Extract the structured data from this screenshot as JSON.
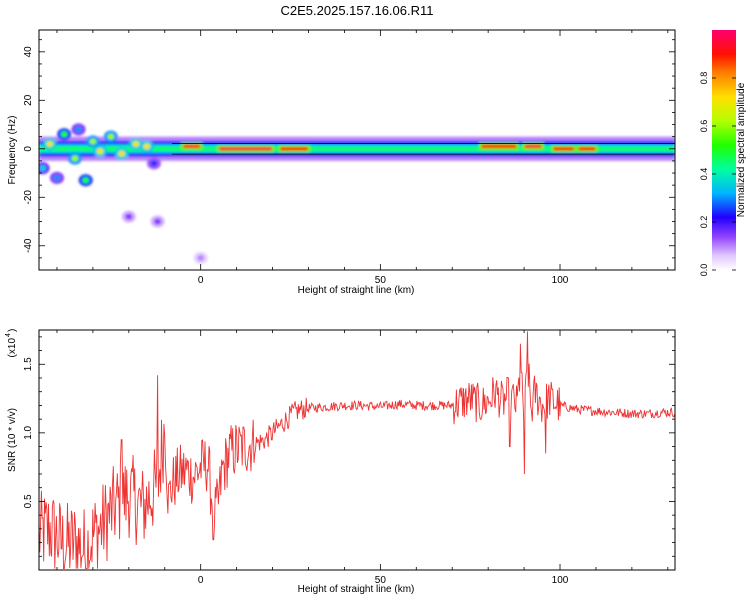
{
  "title": "C2E5.2025.157.16.06.R11",
  "chart_data": [
    {
      "type": "heatmap",
      "xlabel": "Height of straight line (km)",
      "ylabel": "Frequency (Hz)",
      "xlim": [
        -45,
        132
      ],
      "ylim": [
        -50,
        49
      ],
      "xticks": [
        0,
        50,
        100
      ],
      "yticks": [
        -40,
        -20,
        0,
        20,
        40
      ],
      "grid": false,
      "colorbar": {
        "label": "Normalized spectral amplitude",
        "range": [
          0,
          1
        ],
        "ticks": [
          "0.0",
          "0.2",
          "0.4",
          "0.6",
          "0.8"
        ],
        "tick_values": [
          0,
          0.2,
          0.4,
          0.6,
          0.8
        ],
        "colors": [
          "#ffffff",
          "#c8a0ff",
          "#8000ff",
          "#0000ff",
          "#00c8ff",
          "#00ff80",
          "#40ff00",
          "#c8ff00",
          "#ffff00",
          "#ff8000",
          "#ff0000",
          "#ff0060"
        ]
      },
      "features": [
        {
          "x": [
            -45,
            132
          ],
          "y": 0,
          "half_width_hz": 2,
          "amplitude": 0.45
        },
        {
          "x": [
            -5,
            0
          ],
          "y": 1,
          "amplitude": 0.95
        },
        {
          "x": [
            5,
            20
          ],
          "y": 0,
          "amplitude": 0.95
        },
        {
          "x": [
            22,
            30
          ],
          "y": 0,
          "amplitude": 0.9
        },
        {
          "x": [
            78,
            88
          ],
          "y": 1,
          "amplitude": 0.9
        },
        {
          "x": [
            90,
            95
          ],
          "y": 1,
          "amplitude": 0.95
        },
        {
          "x": [
            98,
            104
          ],
          "y": 0,
          "amplitude": 0.9
        },
        {
          "x": [
            105,
            110
          ],
          "y": 0,
          "amplitude": 0.9
        }
      ],
      "scatter_blobs": [
        {
          "x": -42,
          "y": 2,
          "amplitude": 0.7
        },
        {
          "x": -38,
          "y": 6,
          "amplitude": 0.5
        },
        {
          "x": -35,
          "y": -4,
          "amplitude": 0.6
        },
        {
          "x": -32,
          "y": -13,
          "amplitude": 0.5
        },
        {
          "x": -30,
          "y": 3,
          "amplitude": 0.6
        },
        {
          "x": -28,
          "y": -1,
          "amplitude": 0.7
        },
        {
          "x": -25,
          "y": 5,
          "amplitude": 0.6
        },
        {
          "x": -22,
          "y": -2,
          "amplitude": 0.7
        },
        {
          "x": -20,
          "y": -28,
          "amplitude": 0.15
        },
        {
          "x": -18,
          "y": 2,
          "amplitude": 0.7
        },
        {
          "x": -15,
          "y": 1,
          "amplitude": 0.7
        },
        {
          "x": -13,
          "y": -6,
          "amplitude": 0.25
        },
        {
          "x": -12,
          "y": -30,
          "amplitude": 0.15
        },
        {
          "x": -44,
          "y": -8,
          "amplitude": 0.35
        },
        {
          "x": -40,
          "y": -12,
          "amplitude": 0.3
        },
        {
          "x": -34,
          "y": 8,
          "amplitude": 0.3
        },
        {
          "x": 0,
          "y": -45,
          "amplitude": 0.1
        }
      ]
    },
    {
      "type": "line",
      "xlabel": "Height of straight line (km)",
      "ylabel": "SNR (10 * v/v)",
      "y_multiplier": "(x10",
      "y_multiplier_exp": "4",
      "xlim": [
        -45,
        132
      ],
      "ylim": [
        0,
        1.75
      ],
      "xticks": [
        0,
        50,
        100
      ],
      "yticks": [
        0.5,
        1.0,
        1.5
      ],
      "ytick_labels": [
        "0.5",
        "1.0",
        "1.5"
      ],
      "grid": false,
      "series": [
        {
          "color": "#ee3333",
          "x": [
            -45,
            -42,
            -38,
            -35,
            -32,
            -30,
            -28,
            -25,
            -23,
            -20,
            -18,
            -16,
            -14,
            -12,
            -10,
            -9,
            -8,
            -6,
            -4,
            -2,
            0,
            2,
            3,
            4,
            5,
            6,
            8,
            10,
            12,
            15,
            18,
            20,
            22,
            24,
            26,
            28,
            30,
            35,
            40,
            45,
            50,
            55,
            60,
            65,
            70,
            72,
            75,
            78,
            80,
            82,
            84,
            86,
            88,
            89,
            90,
            91,
            92,
            93,
            95,
            97,
            100,
            105,
            110,
            115,
            120,
            125,
            128,
            132
          ],
          "y": [
            0.25,
            0.3,
            0.18,
            0.2,
            0.15,
            0.25,
            0.3,
            0.42,
            0.48,
            0.55,
            0.5,
            0.45,
            0.55,
            0.6,
            1.05,
            0.5,
            0.62,
            0.7,
            0.72,
            0.68,
            0.75,
            0.78,
            0.55,
            0.4,
            0.5,
            0.72,
            0.85,
            0.88,
            0.9,
            0.92,
            0.95,
            1.0,
            1.05,
            1.1,
            1.15,
            1.17,
            1.18,
            1.19,
            1.2,
            1.2,
            1.19,
            1.21,
            1.2,
            1.2,
            1.2,
            1.22,
            1.25,
            1.2,
            1.23,
            1.3,
            1.22,
            1.28,
            1.2,
            1.45,
            1.1,
            1.5,
            1.15,
            1.3,
            1.2,
            1.25,
            1.2,
            1.17,
            1.16,
            1.15,
            1.14,
            1.14,
            1.15,
            1.15
          ]
        }
      ],
      "spikes": [
        {
          "x": -12,
          "y": 1.42
        },
        {
          "x": -22,
          "y": 0.95
        },
        {
          "x": 3.5,
          "y": 0.22
        },
        {
          "x": 90,
          "y": 0.7
        },
        {
          "x": 91,
          "y": 1.75
        },
        {
          "x": 89,
          "y": 1.65
        },
        {
          "x": 86,
          "y": 0.9
        },
        {
          "x": 96,
          "y": 0.85
        }
      ]
    }
  ]
}
